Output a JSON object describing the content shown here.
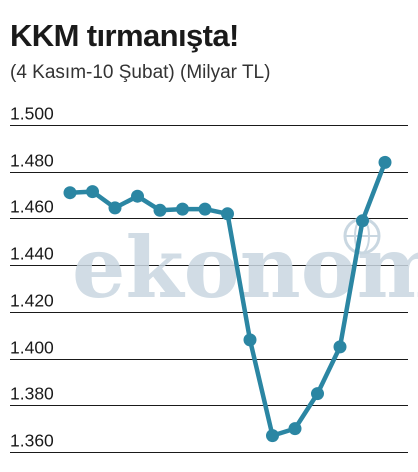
{
  "chart_data": {
    "type": "line",
    "title": "KKM tırmanışta!",
    "subtitle": "(4 Kasım-10 Şubat) (Milyar TL)",
    "xlabel": "",
    "ylabel": "",
    "ylim": [
      1360,
      1500
    ],
    "yticks": [
      1500,
      1480,
      1460,
      1440,
      1420,
      1400,
      1380,
      1360
    ],
    "ytick_labels": [
      "1.500",
      "1.480",
      "1.460",
      "1.440",
      "1.420",
      "1.400",
      "1.380",
      "1.360"
    ],
    "grid": true,
    "x": [
      1,
      2,
      3,
      4,
      5,
      6,
      7,
      8,
      9,
      10,
      11,
      12,
      13,
      14,
      15
    ],
    "series": [
      {
        "values": [
          1471,
          1471.5,
          1464.5,
          1469.5,
          1463.5,
          1464,
          1464,
          1462,
          1408,
          1367,
          1370,
          1385,
          1405,
          1459,
          1484
        ],
        "color": "#2b86a3"
      }
    ]
  },
  "watermark": "ekonomi"
}
